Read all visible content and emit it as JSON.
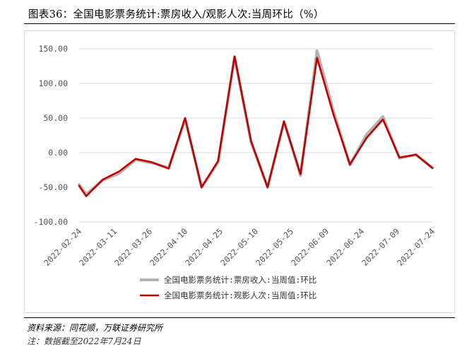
{
  "header": {
    "title": "图表36：全国电影票务统计:票房收入/观影人次:当周环比（%）"
  },
  "footer": {
    "source": "资料来源：同花顺，万联证券研究所",
    "note": "注：数据截至2022年7月24日"
  },
  "colors": {
    "series_gray": "#b3b3b3",
    "series_red": "#c00000",
    "grid": "#d9d9d9",
    "axis_text": "#555555"
  },
  "chart_data": {
    "type": "line",
    "title": "",
    "xlabel": "",
    "ylabel": "",
    "ylim": [
      -100,
      150
    ],
    "yticks": [
      "150.00",
      "100.00",
      "50.00",
      "0.00",
      "-50.00",
      "-100.00"
    ],
    "xtick_labels": [
      "2022-02-24",
      "2022-03-11",
      "2022-03-26",
      "2022-04-10",
      "2022-04-25",
      "2022-05-10",
      "2022-05-25",
      "2022-06-09",
      "2022-06-24",
      "2022-07-09",
      "2022-07-24"
    ],
    "x": [
      "2022-02-24",
      "2022-02-27",
      "2022-03-06",
      "2022-03-13",
      "2022-03-20",
      "2022-03-27",
      "2022-04-03",
      "2022-04-10",
      "2022-04-17",
      "2022-04-24",
      "2022-05-01",
      "2022-05-08",
      "2022-05-15",
      "2022-05-22",
      "2022-05-29",
      "2022-06-05",
      "2022-06-12",
      "2022-06-19",
      "2022-06-26",
      "2022-07-03",
      "2022-07-10",
      "2022-07-17",
      "2022-07-24"
    ],
    "grid": true,
    "legend_position": "bottom",
    "series": [
      {
        "name": "全国电影票务统计:票房收入:当周值:环比",
        "color": "#b3b3b3",
        "values": [
          -46,
          -60,
          -40,
          -30,
          -10,
          -15,
          -22,
          48,
          -50,
          -14,
          138,
          15,
          -50,
          45,
          -33,
          147,
          60,
          -18,
          26,
          52,
          -8,
          -3,
          -22
        ]
      },
      {
        "name": "全国电影票务统计:观影人次:当周值:环比",
        "color": "#c00000",
        "values": [
          -48,
          -63,
          -39,
          -27,
          -9,
          -14,
          -23,
          50,
          -50,
          -12,
          139,
          17,
          -50,
          45,
          -31,
          137,
          55,
          -17,
          21,
          48,
          -7,
          -3,
          -22
        ]
      }
    ]
  }
}
